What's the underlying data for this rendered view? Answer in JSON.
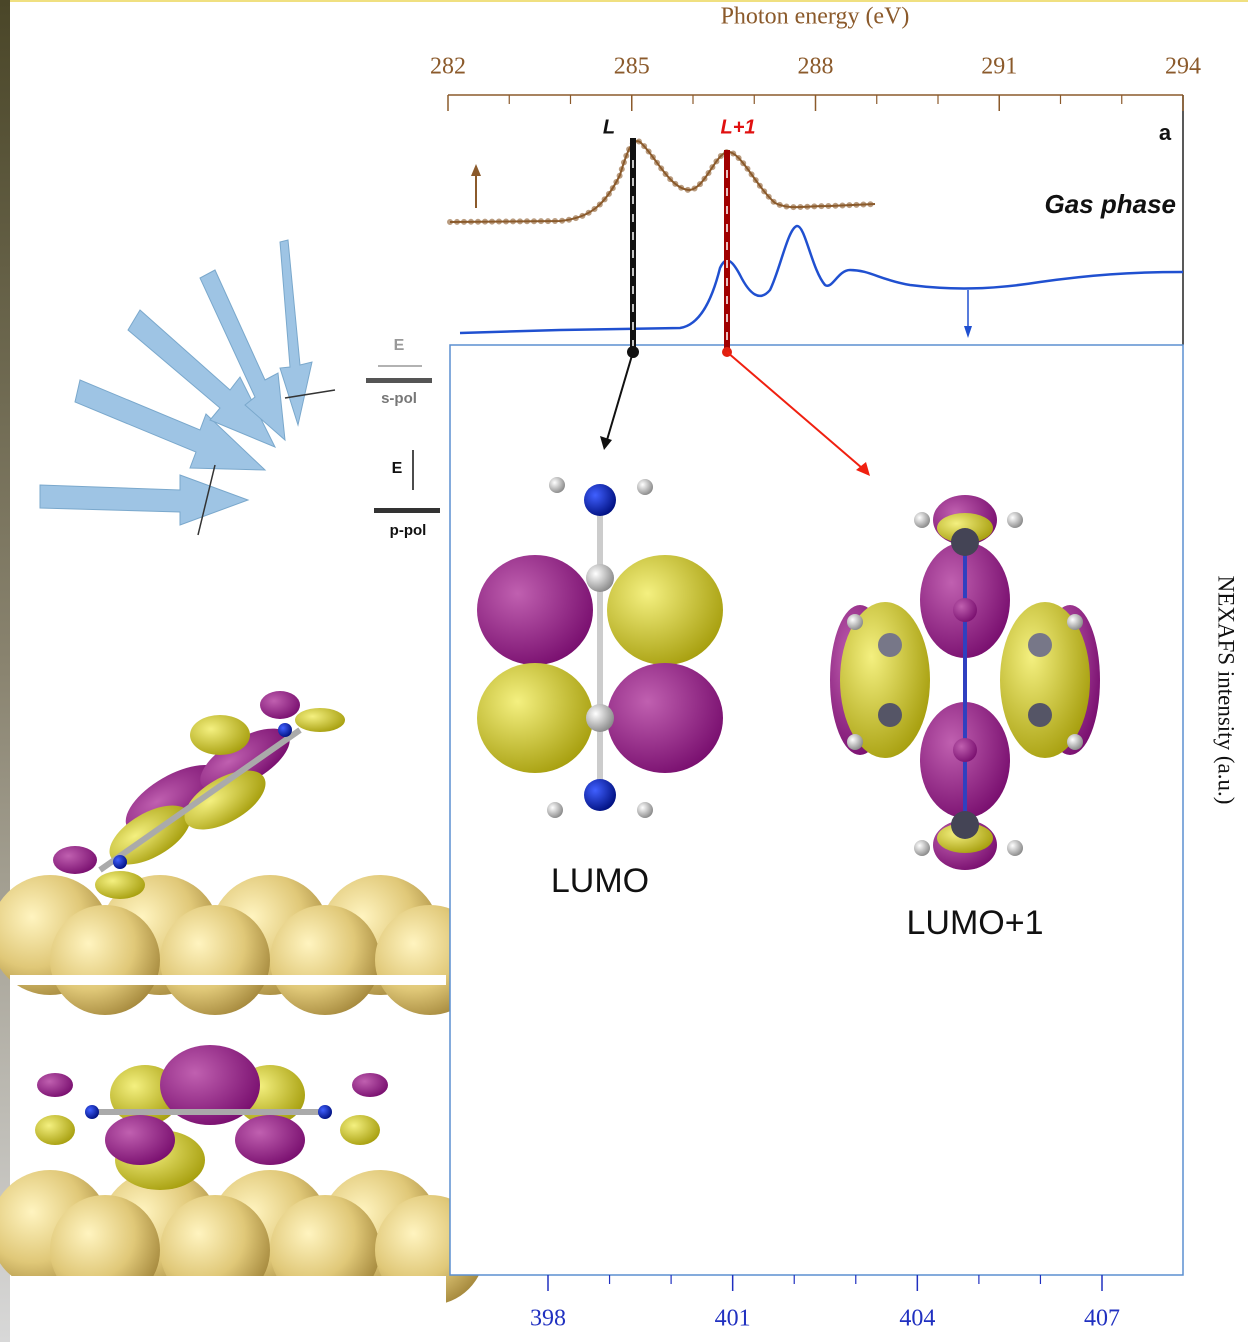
{
  "figure": {
    "top_axis": {
      "title": "Photon energy (eV)",
      "ticks": [
        282,
        285,
        288,
        291,
        294
      ]
    },
    "peak_labels": [
      "L",
      "L+1"
    ],
    "panel_label": "a",
    "phase_label": "Gas phase",
    "polarization": {
      "s": {
        "field": "E",
        "label": "s-pol"
      },
      "p": {
        "field": "E",
        "label": "p-pol"
      }
    },
    "orbitals": [
      "LUMO",
      "LUMO+1"
    ],
    "y_axis_title": "NEXAFS intensity (a.u.)",
    "bottom_axis": {
      "ticks": [
        398,
        401,
        404,
        407
      ]
    }
  }
}
